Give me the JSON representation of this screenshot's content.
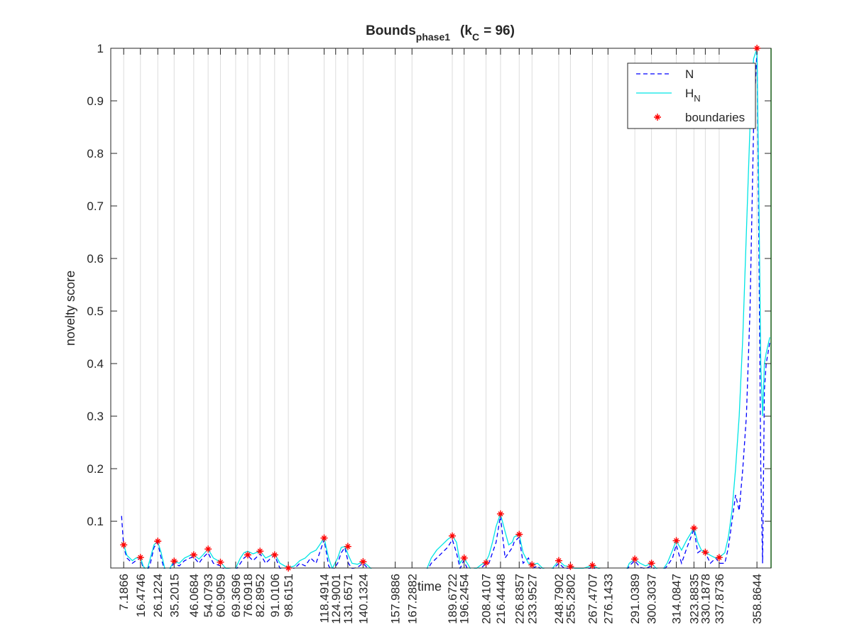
{
  "chart_data": {
    "type": "line",
    "title": {
      "main": "Bounds",
      "main_subscript": "phase1",
      "param": "(k",
      "param_subscript": "C",
      "param_rest": "= 96)"
    },
    "x_label": "time",
    "y_label": "novelty score",
    "xlim": [
      0,
      366.7
    ],
    "ylim": [
      0.011,
      1
    ],
    "xticks": [
      7.1866,
      16.4746,
      26.1224,
      35.2015,
      46.0684,
      54.0793,
      60.9059,
      69.3696,
      76.0918,
      82.8952,
      91.0106,
      98.6151,
      118.4914,
      124.9001,
      131.6571,
      140.1324,
      157.9886,
      167.2882,
      189.6722,
      196.2454,
      208.4107,
      216.4448,
      226.8357,
      233.9527,
      248.7902,
      255.2802,
      267.4707,
      276.1433,
      291.0389,
      300.3037,
      314.0847,
      323.8835,
      330.1878,
      337.8736,
      358.8644
    ],
    "yticks": [
      0.1,
      0.2,
      0.3,
      0.4,
      0.5,
      0.6,
      0.7,
      0.8,
      0.9,
      1
    ],
    "x_grid": true,
    "legend_position": "upper right",
    "x": [
      6,
      7.2,
      9,
      12,
      14,
      16.5,
      18,
      20,
      22,
      24,
      26,
      28,
      30,
      32,
      35,
      38,
      41,
      44,
      46,
      49,
      51,
      54,
      57,
      61,
      64,
      69,
      72,
      74,
      76,
      79,
      83,
      86,
      89,
      91,
      94,
      98.6,
      102,
      105,
      108,
      111,
      114,
      116,
      118.5,
      121,
      123,
      126,
      128,
      130,
      132,
      134,
      137,
      140,
      143,
      146,
      160,
      175,
      178,
      181,
      184,
      187,
      189.7,
      192,
      194,
      196,
      198,
      200,
      203,
      206,
      208,
      210,
      212,
      214,
      216.4,
      219,
      221,
      223,
      224,
      226.8,
      229,
      232,
      234,
      237,
      240,
      244,
      248.8,
      252,
      255,
      258,
      262,
      267.5,
      271,
      275,
      286,
      288,
      291,
      294,
      297,
      300.3,
      303,
      306,
      309,
      312,
      314,
      317,
      320,
      323.9,
      326,
      328,
      330.2,
      333,
      336,
      338,
      341,
      343,
      345,
      347,
      349,
      351,
      353,
      355,
      357,
      358.9,
      360,
      361,
      362,
      363,
      364,
      366
    ],
    "series": [
      {
        "name": "N",
        "color": "#0000ff",
        "dashed": true,
        "values": [
          0.11,
          0.05,
          0.03,
          0.02,
          0.025,
          0.03,
          0.01,
          0.003,
          0.02,
          0.05,
          0.06,
          0.03,
          0.005,
          0.003,
          0.02,
          0.015,
          0.025,
          0.03,
          0.032,
          0.02,
          0.03,
          0.04,
          0.02,
          0.015,
          0.005,
          0.005,
          0.02,
          0.03,
          0.035,
          0.025,
          0.038,
          0.02,
          0.03,
          0.035,
          0.01,
          0.005,
          0.01,
          0.02,
          0.015,
          0.03,
          0.02,
          0.04,
          0.065,
          0.015,
          0.005,
          0.02,
          0.04,
          0.05,
          0.02,
          0.01,
          0.012,
          0.02,
          0.01,
          0.003,
          null,
          0.003,
          0.02,
          0.03,
          0.04,
          0.05,
          0.065,
          0.04,
          0.01,
          0.025,
          0.01,
          0.005,
          0.005,
          0.012,
          0.018,
          0.02,
          0.04,
          0.06,
          0.11,
          0.03,
          0.04,
          0.05,
          0.06,
          0.07,
          0.02,
          0.03,
          0.01,
          0.015,
          0.005,
          0.003,
          0.02,
          0.01,
          0.01,
          0.005,
          0.005,
          0.012,
          0.005,
          0.003,
          0.003,
          0.015,
          0.025,
          0.012,
          0.01,
          0.015,
          0.005,
          0.003,
          0.015,
          0.03,
          0.055,
          0.02,
          0.05,
          0.085,
          0.04,
          0.045,
          0.04,
          0.02,
          0.03,
          0.02,
          0.02,
          0.05,
          0.1,
          0.15,
          0.12,
          0.2,
          0.3,
          0.5,
          0.85,
          1.0,
          0.6,
          0.2,
          0.02,
          0.35,
          0.4,
          0.44
        ]
      },
      {
        "name": "H",
        "name_subscript": "N",
        "color": "#00e5e5",
        "dashed": false,
        "values": [
          0.06,
          0.055,
          0.035,
          0.025,
          0.03,
          0.031,
          0.015,
          0.005,
          0.03,
          0.055,
          0.062,
          0.04,
          0.01,
          0.005,
          0.024,
          0.02,
          0.03,
          0.035,
          0.036,
          0.028,
          0.035,
          0.047,
          0.03,
          0.022,
          0.01,
          0.008,
          0.03,
          0.04,
          0.043,
          0.038,
          0.043,
          0.03,
          0.035,
          0.038,
          0.02,
          0.011,
          0.015,
          0.025,
          0.03,
          0.04,
          0.045,
          0.055,
          0.068,
          0.03,
          0.01,
          0.03,
          0.05,
          0.052,
          0.035,
          0.02,
          0.018,
          0.023,
          0.015,
          0.005,
          null,
          0.005,
          0.03,
          0.045,
          0.055,
          0.065,
          0.072,
          0.06,
          0.02,
          0.03,
          0.02,
          0.008,
          0.01,
          0.018,
          0.021,
          0.035,
          0.06,
          0.09,
          0.114,
          0.08,
          0.055,
          0.06,
          0.07,
          0.075,
          0.04,
          0.02,
          0.017,
          0.02,
          0.01,
          0.005,
          0.025,
          0.015,
          0.014,
          0.01,
          0.01,
          0.016,
          0.01,
          0.005,
          0.005,
          0.02,
          0.028,
          0.02,
          0.015,
          0.02,
          0.01,
          0.005,
          0.02,
          0.045,
          0.063,
          0.045,
          0.065,
          0.087,
          0.06,
          0.045,
          0.041,
          0.035,
          0.03,
          0.031,
          0.04,
          0.07,
          0.12,
          0.2,
          0.3,
          0.45,
          0.65,
          0.85,
          0.98,
          1.0,
          0.7,
          0.4,
          0.3,
          0.4,
          0.42,
          0.45
        ]
      }
    ],
    "boundaries": {
      "name": "boundaries",
      "color": "#ff0000",
      "x": [
        7.1866,
        16.4746,
        26.1224,
        35.2015,
        46.0684,
        54.0793,
        60.9059,
        76.0918,
        82.8952,
        91.0106,
        98.6151,
        118.4914,
        131.6571,
        140.1324,
        189.6722,
        196.2454,
        208.4107,
        216.4448,
        226.8357,
        233.9527,
        248.7902,
        255.2802,
        267.4707,
        291.0389,
        300.3037,
        314.0847,
        323.8835,
        330.1878,
        337.8736,
        358.8644
      ],
      "values": [
        0.055,
        0.031,
        0.062,
        0.024,
        0.036,
        0.047,
        0.022,
        0.036,
        0.043,
        0.036,
        0.011,
        0.068,
        0.052,
        0.023,
        0.072,
        0.03,
        0.021,
        0.114,
        0.075,
        0.017,
        0.025,
        0.014,
        0.016,
        0.028,
        0.02,
        0.063,
        0.087,
        0.041,
        0.031,
        1.0
      ]
    },
    "end_line": {
      "x": 366.7,
      "color": "#00cc00"
    }
  }
}
